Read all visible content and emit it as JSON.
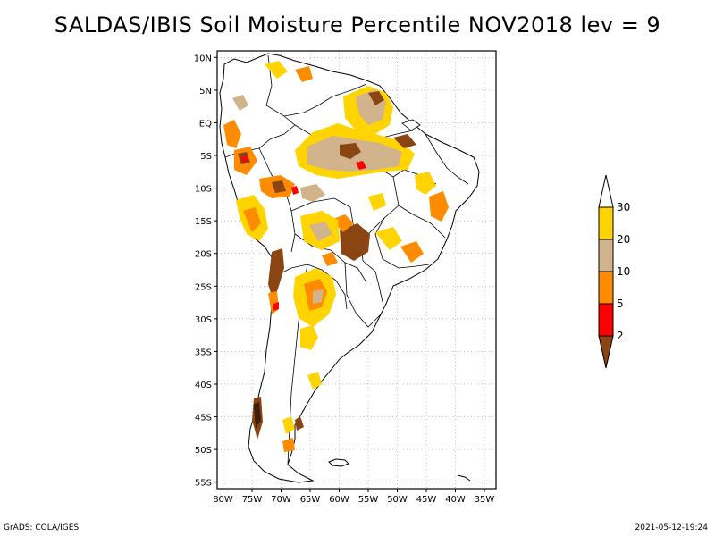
{
  "title": "SALDAS/IBIS Soil Moisture Percentile NOV2018 lev = 9",
  "map": {
    "lat_labels": [
      "10N",
      "5N",
      "EQ",
      "5S",
      "10S",
      "15S",
      "20S",
      "25S",
      "30S",
      "35S",
      "40S",
      "45S",
      "50S",
      "55S"
    ],
    "lon_labels": [
      "80W",
      "75W",
      "70W",
      "65W",
      "60W",
      "55W",
      "50W",
      "45W",
      "40W",
      "35W"
    ],
    "lon_range": [
      -81,
      -33
    ],
    "lat_range": [
      -56,
      11
    ],
    "grid": true,
    "region": "South America"
  },
  "colorbar": {
    "labels": [
      "30",
      "20",
      "10",
      "5",
      "2"
    ],
    "colors": [
      "#ffffff",
      "#ffd400",
      "#d2b48c",
      "#ff8c00",
      "#ff0000",
      "#8b4513"
    ]
  },
  "footer": {
    "left": "GrADS: COLA/IGES",
    "right": "2021-05-12-19:24"
  }
}
